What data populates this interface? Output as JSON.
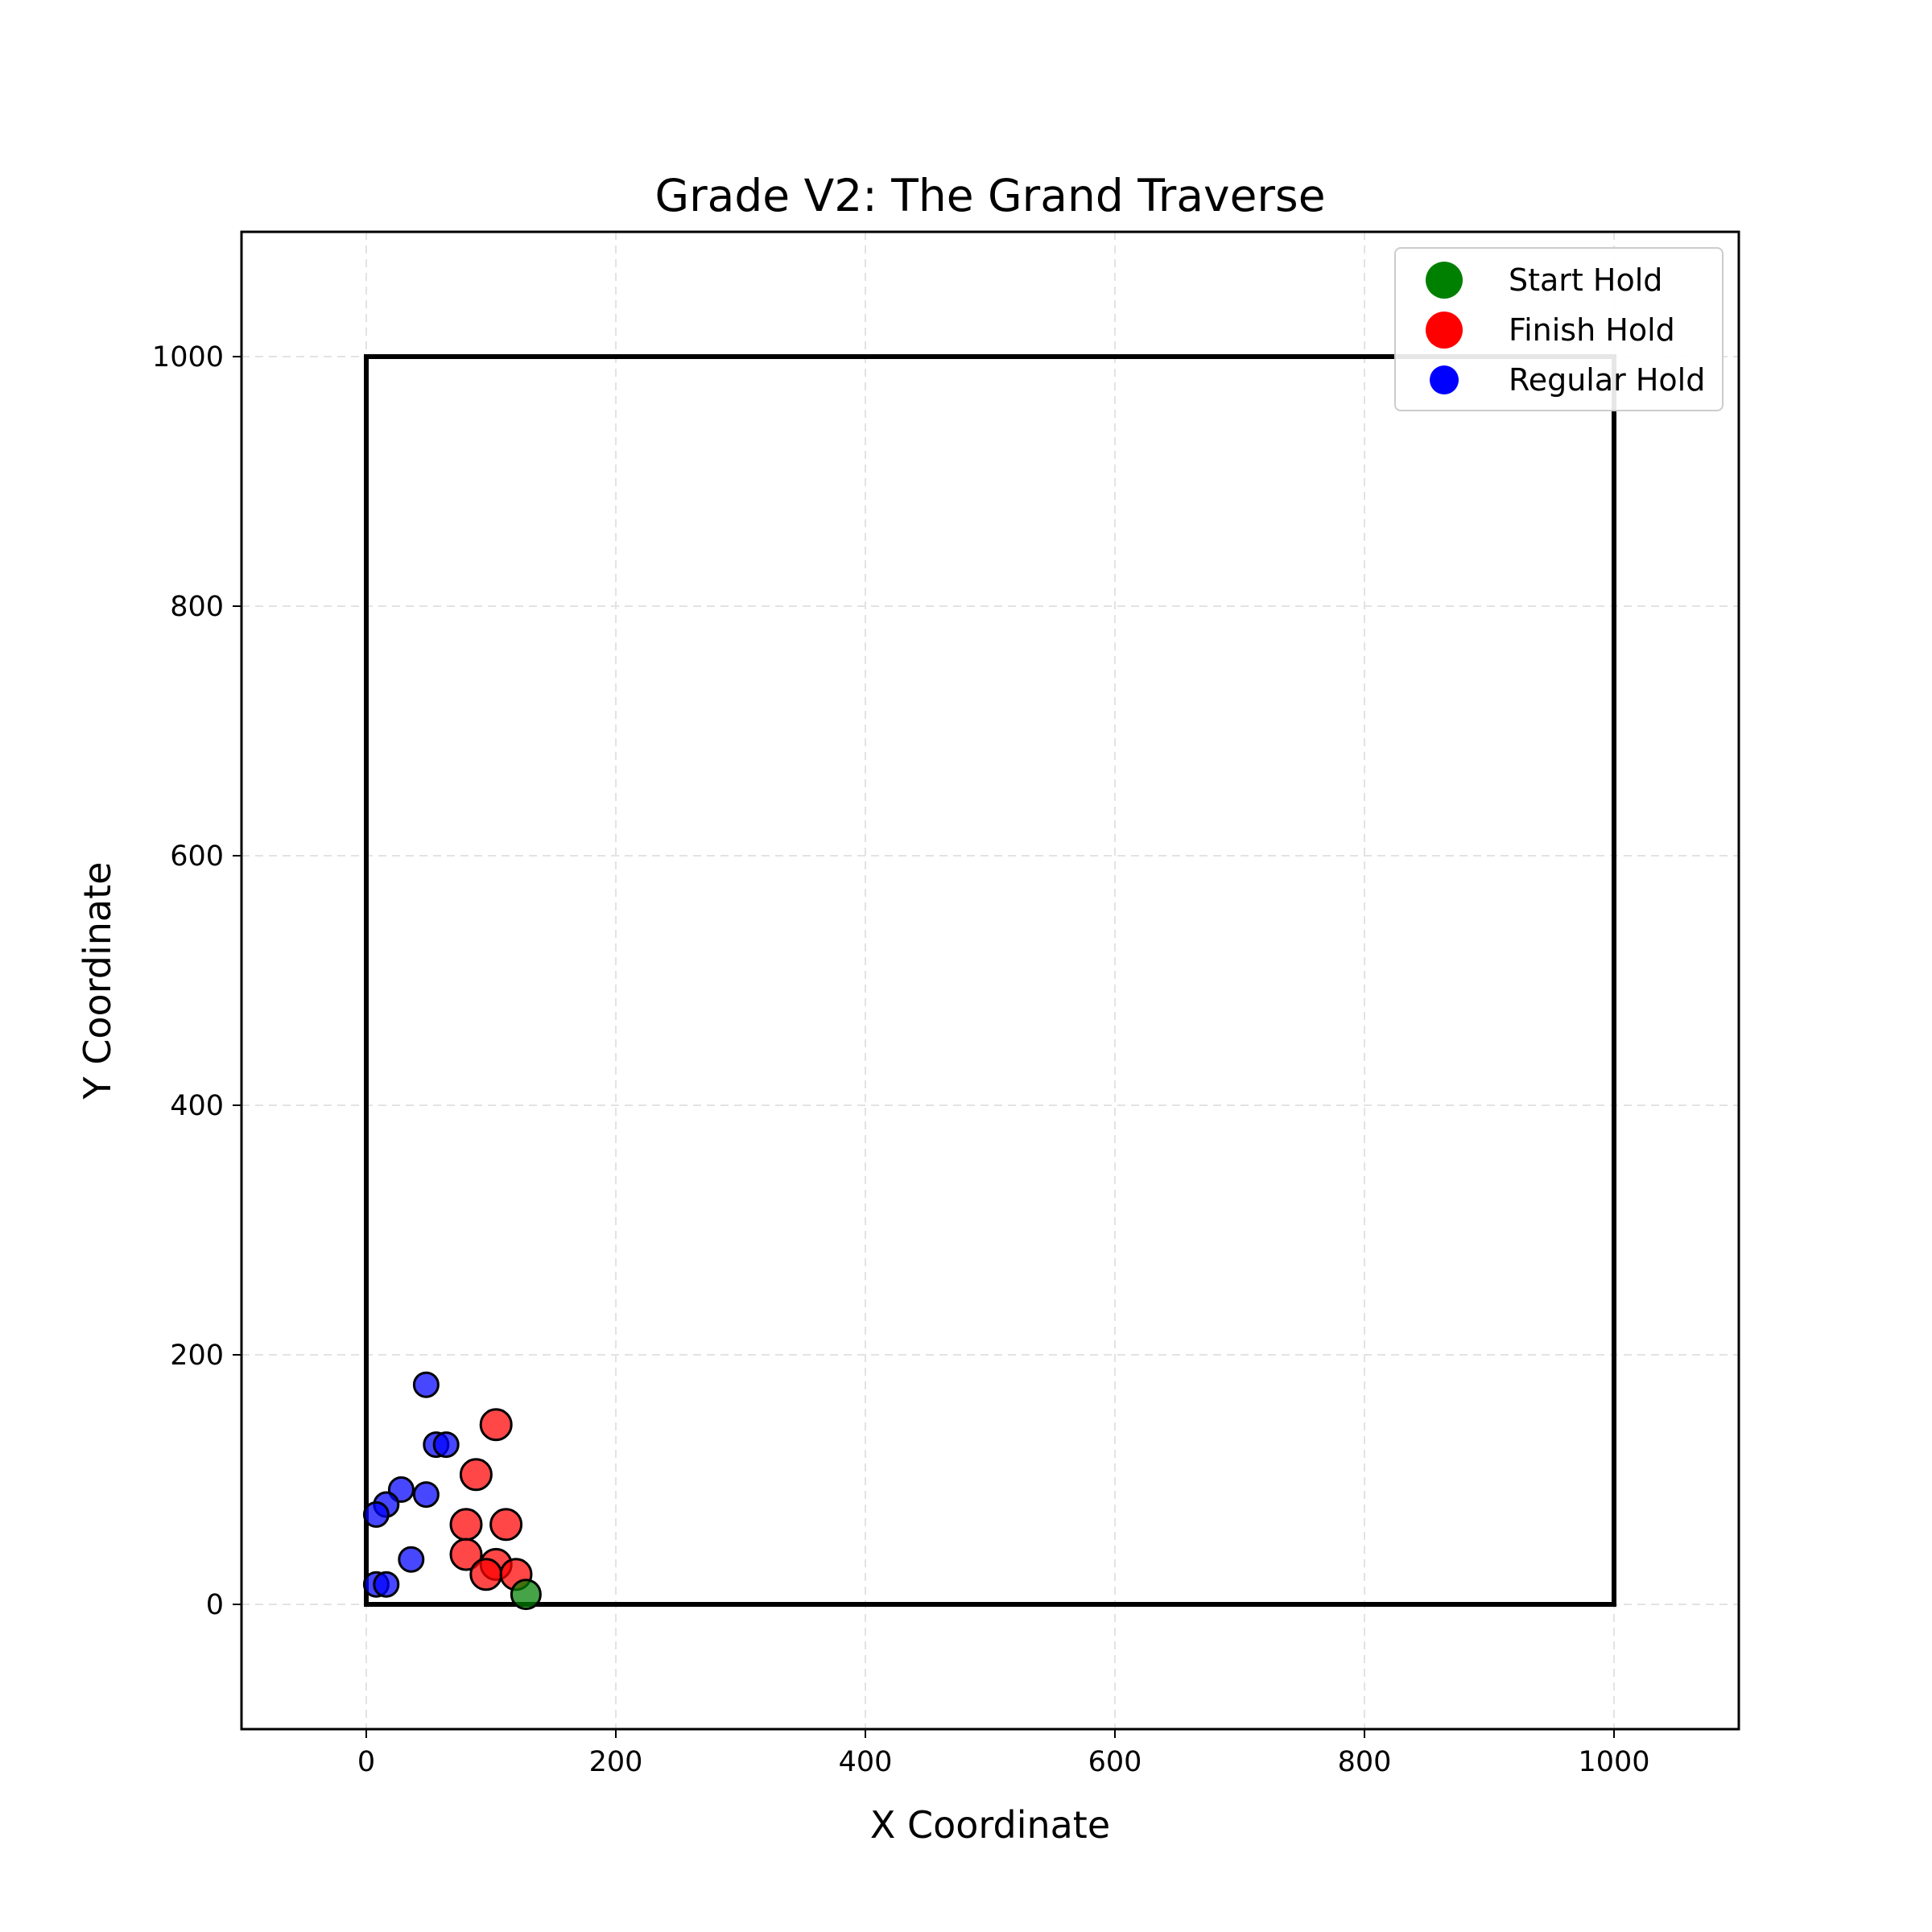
{
  "chart_data": {
    "type": "scatter",
    "title": "Grade V2: The Grand Traverse",
    "xlabel": "X Coordinate",
    "ylabel": "Y Coordinate",
    "xlim": [
      -100,
      1100
    ],
    "ylim": [
      -100,
      1100
    ],
    "xticks": [
      0,
      200,
      400,
      600,
      800,
      1000
    ],
    "yticks": [
      0,
      200,
      400,
      600,
      800,
      1000
    ],
    "grid": true,
    "legend_position": "top-right",
    "wall_outline": {
      "x": [
        0,
        1000
      ],
      "y": [
        0,
        1000
      ]
    },
    "series": [
      {
        "name": "Start Hold",
        "color": "#008000",
        "points": [
          [
            128,
            8
          ]
        ]
      },
      {
        "name": "Finish Hold",
        "color": "#ff0000",
        "points": [
          [
            104,
            144
          ],
          [
            88,
            104
          ],
          [
            80,
            64
          ],
          [
            112,
            64
          ],
          [
            80,
            40
          ],
          [
            104,
            32
          ],
          [
            96,
            24
          ],
          [
            120,
            24
          ]
        ]
      },
      {
        "name": "Regular Hold",
        "color": "#0000ff",
        "points": [
          [
            48,
            176
          ],
          [
            56,
            128
          ],
          [
            64,
            128
          ],
          [
            28,
            92
          ],
          [
            48,
            88
          ],
          [
            16,
            80
          ],
          [
            8,
            72
          ],
          [
            36,
            36
          ],
          [
            8,
            16
          ],
          [
            16,
            16
          ]
        ]
      }
    ]
  }
}
